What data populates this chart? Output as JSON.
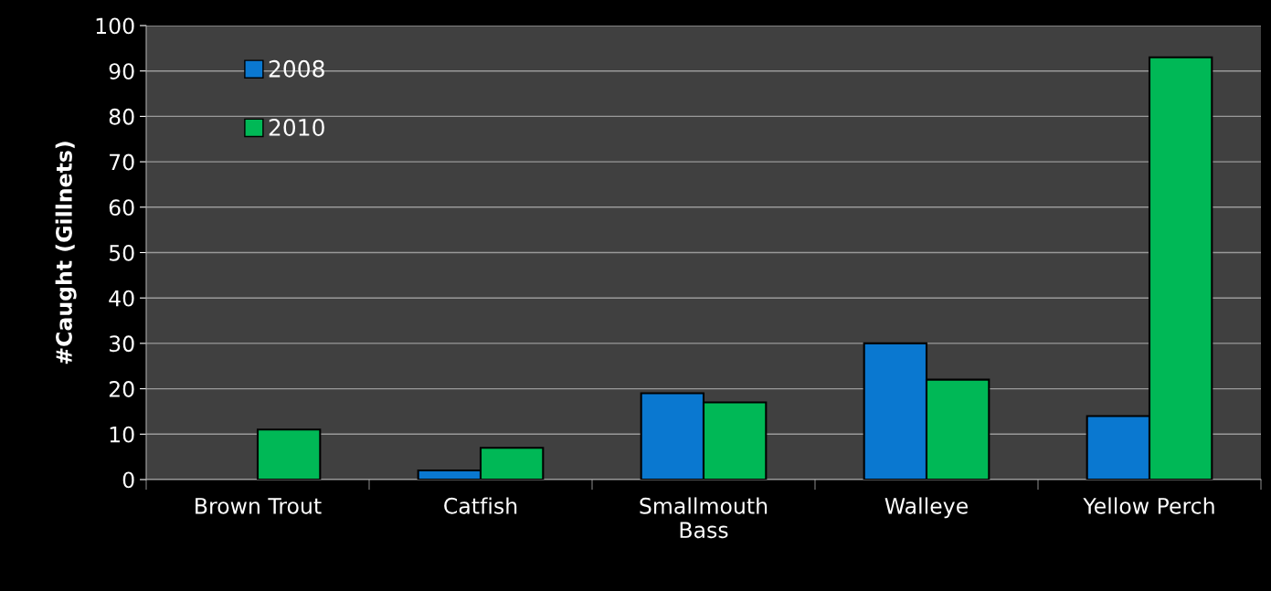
{
  "chart_data": {
    "type": "bar",
    "ylabel": "#Caught (Gillnets)",
    "categories": [
      "Brown Trout",
      "Catfish",
      "Smallmouth\nBass",
      "Walleye",
      "Yellow Perch"
    ],
    "series": [
      {
        "name": "2008",
        "color": "#0a78d0",
        "values": [
          null,
          2,
          19,
          30,
          14
        ]
      },
      {
        "name": "2010",
        "color": "#00b856",
        "values": [
          11,
          7,
          17,
          22,
          93
        ]
      }
    ],
    "ylim": [
      0,
      100
    ],
    "yticks": [
      0,
      10,
      20,
      30,
      40,
      50,
      60,
      70,
      80,
      90,
      100
    ],
    "grid": "y",
    "legend": "top left"
  }
}
